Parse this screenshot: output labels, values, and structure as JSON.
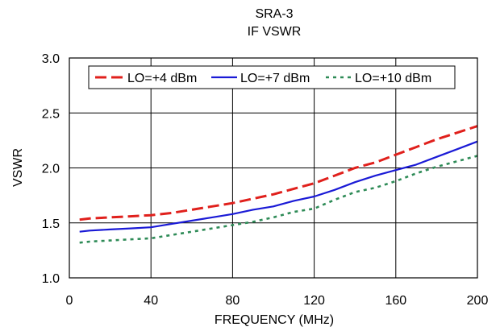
{
  "chart_data": {
    "type": "line",
    "title": "SRA-3",
    "subtitle": "IF VSWR",
    "xlabel": "FREQUENCY (MHz)",
    "ylabel": "VSWR",
    "xlim": [
      0,
      200
    ],
    "ylim": [
      1.0,
      3.0
    ],
    "xticks": [
      "0",
      "40",
      "80",
      "120",
      "160",
      "200"
    ],
    "yticks": [
      "1.0",
      "1.5",
      "2.0",
      "2.5",
      "3.0"
    ],
    "grid": true,
    "legend_position": "top",
    "series": [
      {
        "name": "LO=+4 dBm",
        "color": "#e0201c",
        "dash": "dashed",
        "x": [
          5,
          10,
          20,
          30,
          40,
          50,
          60,
          70,
          80,
          90,
          100,
          110,
          120,
          130,
          140,
          150,
          160,
          170,
          180,
          190,
          200
        ],
        "y": [
          1.53,
          1.54,
          1.55,
          1.56,
          1.57,
          1.59,
          1.62,
          1.65,
          1.68,
          1.72,
          1.76,
          1.81,
          1.86,
          1.93,
          2.0,
          2.05,
          2.12,
          2.19,
          2.26,
          2.32,
          2.38
        ]
      },
      {
        "name": "LO=+7 dBm",
        "color": "#1a1ad6",
        "dash": "solid",
        "x": [
          5,
          10,
          20,
          30,
          40,
          50,
          60,
          70,
          80,
          90,
          100,
          110,
          120,
          130,
          140,
          150,
          160,
          170,
          180,
          190,
          200
        ],
        "y": [
          1.42,
          1.43,
          1.44,
          1.45,
          1.46,
          1.49,
          1.52,
          1.55,
          1.58,
          1.62,
          1.65,
          1.7,
          1.74,
          1.8,
          1.87,
          1.93,
          1.98,
          2.03,
          2.1,
          2.17,
          2.24
        ]
      },
      {
        "name": "LO=+10 dBm",
        "color": "#2e8b57",
        "dash": "dotted",
        "x": [
          5,
          10,
          20,
          30,
          40,
          50,
          60,
          70,
          80,
          90,
          100,
          110,
          120,
          130,
          140,
          150,
          160,
          170,
          180,
          190,
          200
        ],
        "y": [
          1.32,
          1.33,
          1.34,
          1.35,
          1.36,
          1.39,
          1.42,
          1.45,
          1.48,
          1.51,
          1.55,
          1.6,
          1.63,
          1.71,
          1.78,
          1.82,
          1.88,
          1.95,
          2.01,
          2.06,
          2.11
        ]
      }
    ]
  }
}
